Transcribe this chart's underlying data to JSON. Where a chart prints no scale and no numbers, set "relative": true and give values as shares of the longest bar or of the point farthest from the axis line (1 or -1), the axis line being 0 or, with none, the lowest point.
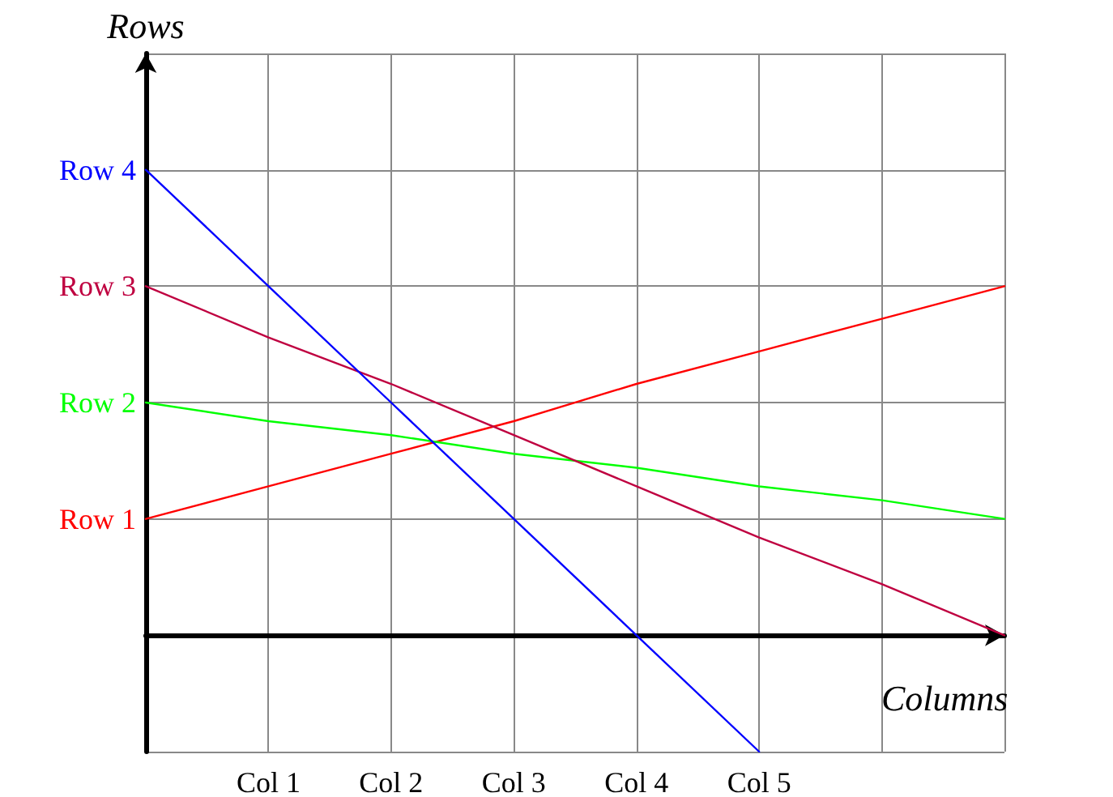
{
  "chart_data": {
    "type": "line",
    "xlabel": "Columns",
    "ylabel": "Rows",
    "relative": true,
    "categories": [
      null,
      "Col 1",
      "Col 2",
      "Col 3",
      "Col 4",
      "Col 5",
      null,
      null
    ],
    "grid": true,
    "marker": "none",
    "line_style": "solid",
    "series": [
      {
        "name": "Row 1",
        "color": "#ff0000",
        "values": [
          0.25,
          0.32,
          0.39,
          0.46,
          0.54,
          0.61,
          0.68,
          0.75
        ]
      },
      {
        "name": "Row 2",
        "color": "#00ff00",
        "values": [
          0.5,
          0.46,
          0.43,
          0.39,
          0.36,
          0.32,
          0.29,
          0.25
        ]
      },
      {
        "name": "Row 3",
        "color": "#bf0040",
        "values": [
          0.75,
          0.64,
          0.54,
          0.43,
          0.32,
          0.21,
          0.11,
          0
        ]
      },
      {
        "name": "Row 4",
        "color": "#0000ff",
        "values": [
          1,
          0.75,
          0.5,
          0.25,
          0,
          -0.25,
          null,
          null
        ]
      }
    ]
  }
}
